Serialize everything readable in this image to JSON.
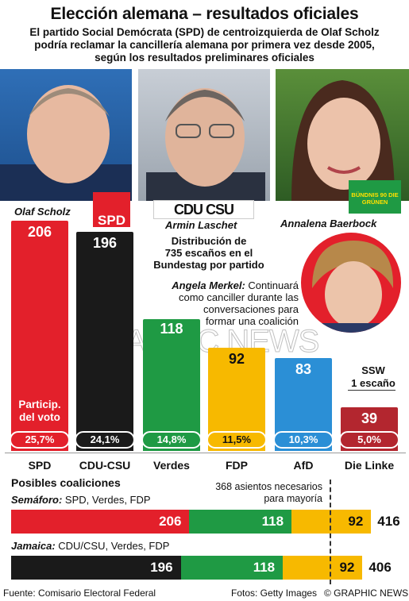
{
  "title": "Elección alemana – resultados oficiales",
  "subtitle": [
    "El partido Social Demócrata (SPD) de centroizquierda de Olaf Scholz",
    "podría reclamar la cancillería alemana por primera vez desde 2005,",
    "según los resultados preliminares oficiales"
  ],
  "candidates": [
    {
      "name": "Olaf Scholz",
      "logo": "SPD"
    },
    {
      "name": "Armin Laschet",
      "logo": "CDU CSU"
    },
    {
      "name": "Annalena Baerbock",
      "logo": "BÜNDNIS 90 DIE GRÜNEN"
    }
  ],
  "distribution_label": [
    "Distribución de",
    "735 escaños en el",
    "Bundestag por partido"
  ],
  "merkel_note": {
    "name": "Angela Merkel:",
    "text": [
      " Continuará",
      "como canciller durante las",
      "conversaciones para",
      "formar una coalición"
    ]
  },
  "watermark": "GRAPHIC NEWS",
  "ssw_note": [
    "SSW",
    "1 escaño"
  ],
  "vote_share_label": [
    "Particip.",
    "del voto"
  ],
  "chart_data": {
    "type": "bar",
    "title": "Distribución de 735 escaños en el Bundestag por partido",
    "categories": [
      "SPD",
      "CDU-CSU",
      "Verdes",
      "FDP",
      "AfD",
      "Die Linke"
    ],
    "seats": [
      206,
      196,
      118,
      92,
      83,
      39
    ],
    "vote_share": [
      "25,7%",
      "24,1%",
      "14,8%",
      "11,5%",
      "10,3%",
      "5,0%"
    ],
    "colors": [
      "#e3202b",
      "#1a1a1a",
      "#1f9a44",
      "#f7b900",
      "#2b8fd6",
      "#b3262f"
    ],
    "ylim": [
      0,
      206
    ]
  },
  "coalitions": {
    "title": "Posibles coaliciones",
    "majority_note": [
      "368 asientos necesarios",
      "para mayoría"
    ],
    "majority": 368,
    "items": [
      {
        "name": "Semáforo:",
        "parties": " SPD, Verdes, FDP",
        "segments": [
          {
            "value": 206,
            "color": "#e3202b"
          },
          {
            "value": 118,
            "color": "#1f9a44"
          },
          {
            "value": 92,
            "color": "#f7b900"
          }
        ],
        "total": "416"
      },
      {
        "name": "Jamaica:",
        "parties": " CDU/CSU, Verdes, FDP",
        "segments": [
          {
            "value": 196,
            "color": "#1a1a1a"
          },
          {
            "value": 118,
            "color": "#1f9a44"
          },
          {
            "value": 92,
            "color": "#f7b900"
          }
        ],
        "total": "406"
      }
    ]
  },
  "footer": {
    "source": "Fuente: Comisario Electoral Federal",
    "photos": "Fotos: Getty Images",
    "credit": "© GRAPHIC NEWS"
  }
}
